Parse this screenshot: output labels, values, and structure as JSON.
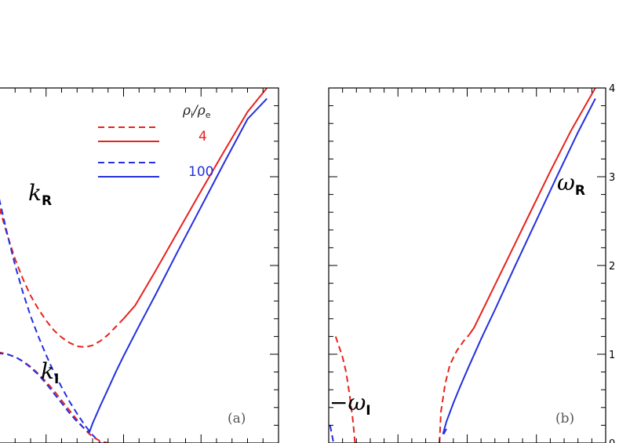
{
  "chart_data": [
    {
      "panel": "a",
      "type": "line",
      "panel_label": "(a)",
      "xlim": [
        0.0,
        4.0
      ],
      "ylim": [
        0.0,
        4.0
      ],
      "curve_labels": {
        "kR": {
          "main": "k",
          "sub": "R"
        },
        "kI": {
          "main": "k",
          "sub": "I"
        }
      },
      "legend": {
        "title": "ρ",
        "title_sub_i": "i",
        "title_sub_e": "e",
        "entries": [
          {
            "value": "4",
            "color": "#e8231d"
          },
          {
            "value": "100",
            "color": "#2330e0"
          }
        ]
      },
      "series": [
        {
          "style": "dashed",
          "color": "#e8231d",
          "points": [
            [
              0.1,
              4.0
            ],
            [
              0.2,
              3.45
            ],
            [
              0.3,
              3.0
            ],
            [
              0.4,
              2.64
            ],
            [
              0.5,
              2.34
            ],
            [
              0.6,
              2.07
            ],
            [
              0.7,
              1.85
            ],
            [
              0.8,
              1.66
            ],
            [
              0.9,
              1.51
            ],
            [
              1.0,
              1.38
            ],
            [
              1.1,
              1.27
            ],
            [
              1.2,
              1.19
            ],
            [
              1.3,
              1.13
            ],
            [
              1.4,
              1.09
            ],
            [
              1.5,
              1.08
            ],
            [
              1.6,
              1.1
            ],
            [
              1.7,
              1.15
            ],
            [
              1.8,
              1.22
            ],
            [
              1.9,
              1.31
            ],
            [
              2.0,
              1.4
            ]
          ]
        },
        {
          "style": "solid",
          "color": "#e8231d",
          "points": [
            [
              2.0,
              1.4
            ],
            [
              2.15,
              1.55
            ],
            [
              2.4,
              1.92
            ],
            [
              2.7,
              2.38
            ],
            [
              3.0,
              2.84
            ],
            [
              3.3,
              3.29
            ],
            [
              3.6,
              3.73
            ],
            [
              3.85,
              4.0
            ]
          ]
        },
        {
          "style": "dashed",
          "color": "#2330e0",
          "points": [
            [
              0.15,
              4.0
            ],
            [
              0.2,
              3.7
            ],
            [
              0.3,
              3.18
            ],
            [
              0.4,
              2.73
            ],
            [
              0.5,
              2.35
            ],
            [
              0.6,
              2.0
            ],
            [
              0.7,
              1.7
            ],
            [
              0.8,
              1.43
            ],
            [
              0.9,
              1.2
            ],
            [
              1.0,
              0.99
            ],
            [
              1.1,
              0.8
            ],
            [
              1.2,
              0.63
            ],
            [
              1.3,
              0.47
            ],
            [
              1.4,
              0.33
            ],
            [
              1.5,
              0.2
            ],
            [
              1.6,
              0.09
            ],
            [
              1.7,
              0.0
            ]
          ]
        },
        {
          "style": "solid",
          "color": "#2330e0",
          "points": [
            [
              1.55,
              0.1
            ],
            [
              1.6,
              0.22
            ],
            [
              1.7,
              0.42
            ],
            [
              1.8,
              0.61
            ],
            [
              1.9,
              0.8
            ],
            [
              2.0,
              0.98
            ],
            [
              2.2,
              1.32
            ],
            [
              2.4,
              1.65
            ],
            [
              2.7,
              2.16
            ],
            [
              3.0,
              2.66
            ],
            [
              3.3,
              3.16
            ],
            [
              3.6,
              3.65
            ],
            [
              3.85,
              3.88
            ]
          ]
        },
        {
          "style": "dashed",
          "color": "#e8231d",
          "points": [
            [
              0.0,
              0.92
            ],
            [
              0.1,
              0.97
            ],
            [
              0.2,
              1.0
            ],
            [
              0.3,
              1.02
            ],
            [
              0.4,
              1.02
            ],
            [
              0.5,
              1.0
            ],
            [
              0.6,
              0.97
            ],
            [
              0.7,
              0.92
            ],
            [
              0.8,
              0.86
            ],
            [
              0.9,
              0.78
            ],
            [
              1.0,
              0.69
            ],
            [
              1.1,
              0.59
            ],
            [
              1.2,
              0.48
            ],
            [
              1.3,
              0.37
            ],
            [
              1.4,
              0.26
            ],
            [
              1.5,
              0.15
            ],
            [
              1.6,
              0.07
            ],
            [
              1.7,
              0.02
            ],
            [
              1.8,
              0.0
            ]
          ]
        },
        {
          "style": "dashed",
          "color": "#2330e0",
          "points": [
            [
              0.0,
              0.9
            ],
            [
              0.1,
              0.95
            ],
            [
              0.2,
              0.99
            ],
            [
              0.3,
              1.01
            ],
            [
              0.4,
              1.01
            ],
            [
              0.5,
              1.0
            ],
            [
              0.6,
              0.97
            ],
            [
              0.7,
              0.92
            ],
            [
              0.8,
              0.85
            ],
            [
              0.9,
              0.77
            ],
            [
              1.0,
              0.67
            ],
            [
              1.1,
              0.56
            ],
            [
              1.2,
              0.45
            ],
            [
              1.3,
              0.34
            ],
            [
              1.4,
              0.24
            ],
            [
              1.5,
              0.16
            ],
            [
              1.55,
              0.12
            ]
          ]
        }
      ]
    },
    {
      "panel": "b",
      "type": "line",
      "panel_label": "(b)",
      "xlim": [
        0.0,
        4.0
      ],
      "ylim": [
        0.0,
        4.0
      ],
      "y_ticks": [
        "0",
        "1",
        "2",
        "3",
        "4"
      ],
      "curve_labels": {
        "wR": {
          "main": "ω",
          "sub": "R"
        },
        "wI": {
          "main": "−ω",
          "sub": "I"
        }
      },
      "series": [
        {
          "style": "dashed",
          "color": "#e8231d",
          "points": [
            [
              0.1,
              1.2
            ],
            [
              0.2,
              0.97
            ],
            [
              0.25,
              0.8
            ],
            [
              0.3,
              0.55
            ],
            [
              0.35,
              0.25
            ],
            [
              0.38,
              0.0
            ]
          ]
        },
        {
          "style": "dashed",
          "color": "#e8231d",
          "points": [
            [
              1.6,
              0.0
            ],
            [
              1.62,
              0.35
            ],
            [
              1.68,
              0.66
            ],
            [
              1.75,
              0.88
            ],
            [
              1.85,
              1.04
            ],
            [
              1.95,
              1.15
            ],
            [
              2.03,
              1.22
            ]
          ]
        },
        {
          "style": "solid",
          "color": "#e8231d",
          "points": [
            [
              2.03,
              1.22
            ],
            [
              2.1,
              1.3
            ],
            [
              2.3,
              1.62
            ],
            [
              2.6,
              2.1
            ],
            [
              2.9,
              2.58
            ],
            [
              3.2,
              3.06
            ],
            [
              3.5,
              3.52
            ],
            [
              3.85,
              4.0
            ]
          ]
        },
        {
          "style": "solid",
          "color": "#2330e0",
          "points": [
            [
              1.65,
              0.1
            ],
            [
              1.7,
              0.24
            ],
            [
              1.8,
              0.45
            ],
            [
              1.9,
              0.64
            ],
            [
              2.0,
              0.82
            ],
            [
              2.2,
              1.17
            ],
            [
              2.4,
              1.5
            ],
            [
              2.7,
              2.01
            ],
            [
              3.0,
              2.51
            ],
            [
              3.3,
              3.01
            ],
            [
              3.6,
              3.5
            ],
            [
              3.85,
              3.88
            ]
          ]
        },
        {
          "style": "dashed",
          "color": "#2330e0",
          "points": [
            [
              1.66,
              0.1
            ],
            [
              1.7,
              0.16
            ]
          ]
        },
        {
          "style": "dashed",
          "color": "#2330e0",
          "points": [
            [
              0.02,
              0.2
            ],
            [
              0.05,
              0.08
            ],
            [
              0.07,
              0.0
            ]
          ]
        }
      ]
    }
  ]
}
